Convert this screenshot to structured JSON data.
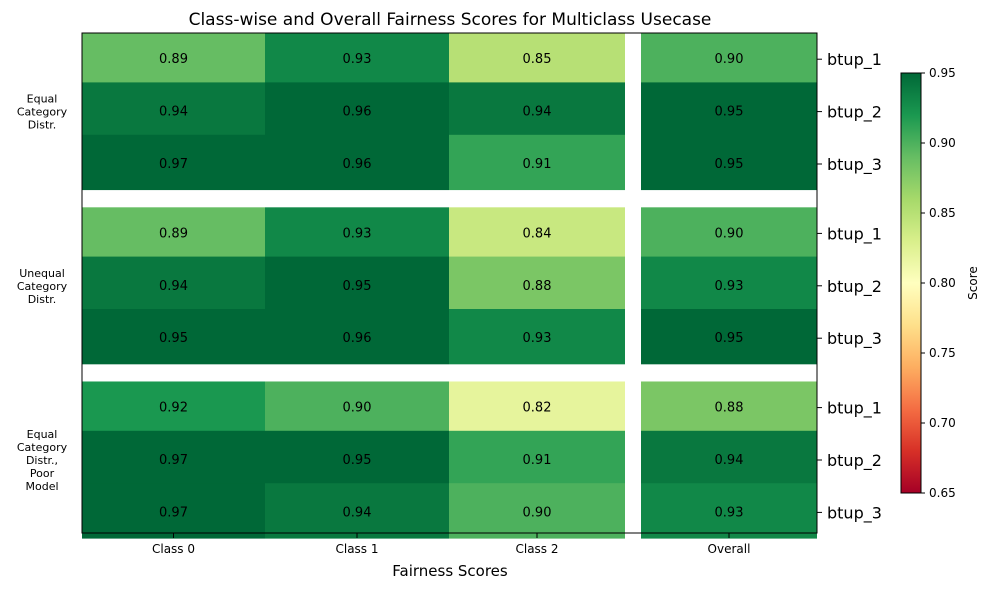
{
  "chart_data": {
    "type": "heatmap",
    "title": "Class-wise and Overall Fairness Scores for Multiclass Usecase",
    "xlabel": "Fairness Scores",
    "columns": [
      "Class 0",
      "Class 1",
      "Class 2",
      "Overall"
    ],
    "groups": [
      {
        "label": [
          "Equal",
          "Category",
          "Distr."
        ],
        "rows": [
          {
            "name": "btup_1",
            "values": [
              0.89,
              0.93,
              0.85,
              0.9
            ],
            "labels": [
              "0.89",
              "0.93",
              "0.85",
              "0.90"
            ]
          },
          {
            "name": "btup_2",
            "values": [
              0.94,
              0.96,
              0.94,
              0.95
            ],
            "labels": [
              "0.94",
              "0.96",
              "0.94",
              "0.95"
            ]
          },
          {
            "name": "btup_3",
            "values": [
              0.97,
              0.96,
              0.91,
              0.95
            ],
            "labels": [
              "0.97",
              "0.96",
              "0.91",
              "0.95"
            ]
          }
        ]
      },
      {
        "label": [
          "Unequal",
          "Category",
          "Distr."
        ],
        "rows": [
          {
            "name": "btup_1",
            "values": [
              0.89,
              0.93,
              0.84,
              0.9
            ],
            "labels": [
              "0.89",
              "0.93",
              "0.84",
              "0.90"
            ]
          },
          {
            "name": "btup_2",
            "values": [
              0.94,
              0.95,
              0.88,
              0.93
            ],
            "labels": [
              "0.94",
              "0.95",
              "0.88",
              "0.93"
            ]
          },
          {
            "name": "btup_3",
            "values": [
              0.95,
              0.96,
              0.93,
              0.95
            ],
            "labels": [
              "0.95",
              "0.96",
              "0.93",
              "0.95"
            ]
          }
        ]
      },
      {
        "label": [
          "Equal",
          "Category",
          "Distr.,",
          "Poor",
          "Model"
        ],
        "rows": [
          {
            "name": "btup_1",
            "values": [
              0.92,
              0.9,
              0.82,
              0.88
            ],
            "labels": [
              "0.92",
              "0.90",
              "0.82",
              "0.88"
            ]
          },
          {
            "name": "btup_2",
            "values": [
              0.97,
              0.95,
              0.91,
              0.94
            ],
            "labels": [
              "0.97",
              "0.95",
              "0.91",
              "0.94"
            ]
          },
          {
            "name": "btup_3",
            "values": [
              0.97,
              0.94,
              0.9,
              0.93
            ],
            "labels": [
              "0.97",
              "0.94",
              "0.90",
              "0.93"
            ]
          }
        ]
      }
    ],
    "colorbar": {
      "label": "Score",
      "min": 0.65,
      "max": 0.95,
      "ticks": [
        "0.95",
        "0.90",
        "0.85",
        "0.80",
        "0.75",
        "0.70",
        "0.65"
      ],
      "colormap": "RdYlGn"
    },
    "grid": false
  }
}
